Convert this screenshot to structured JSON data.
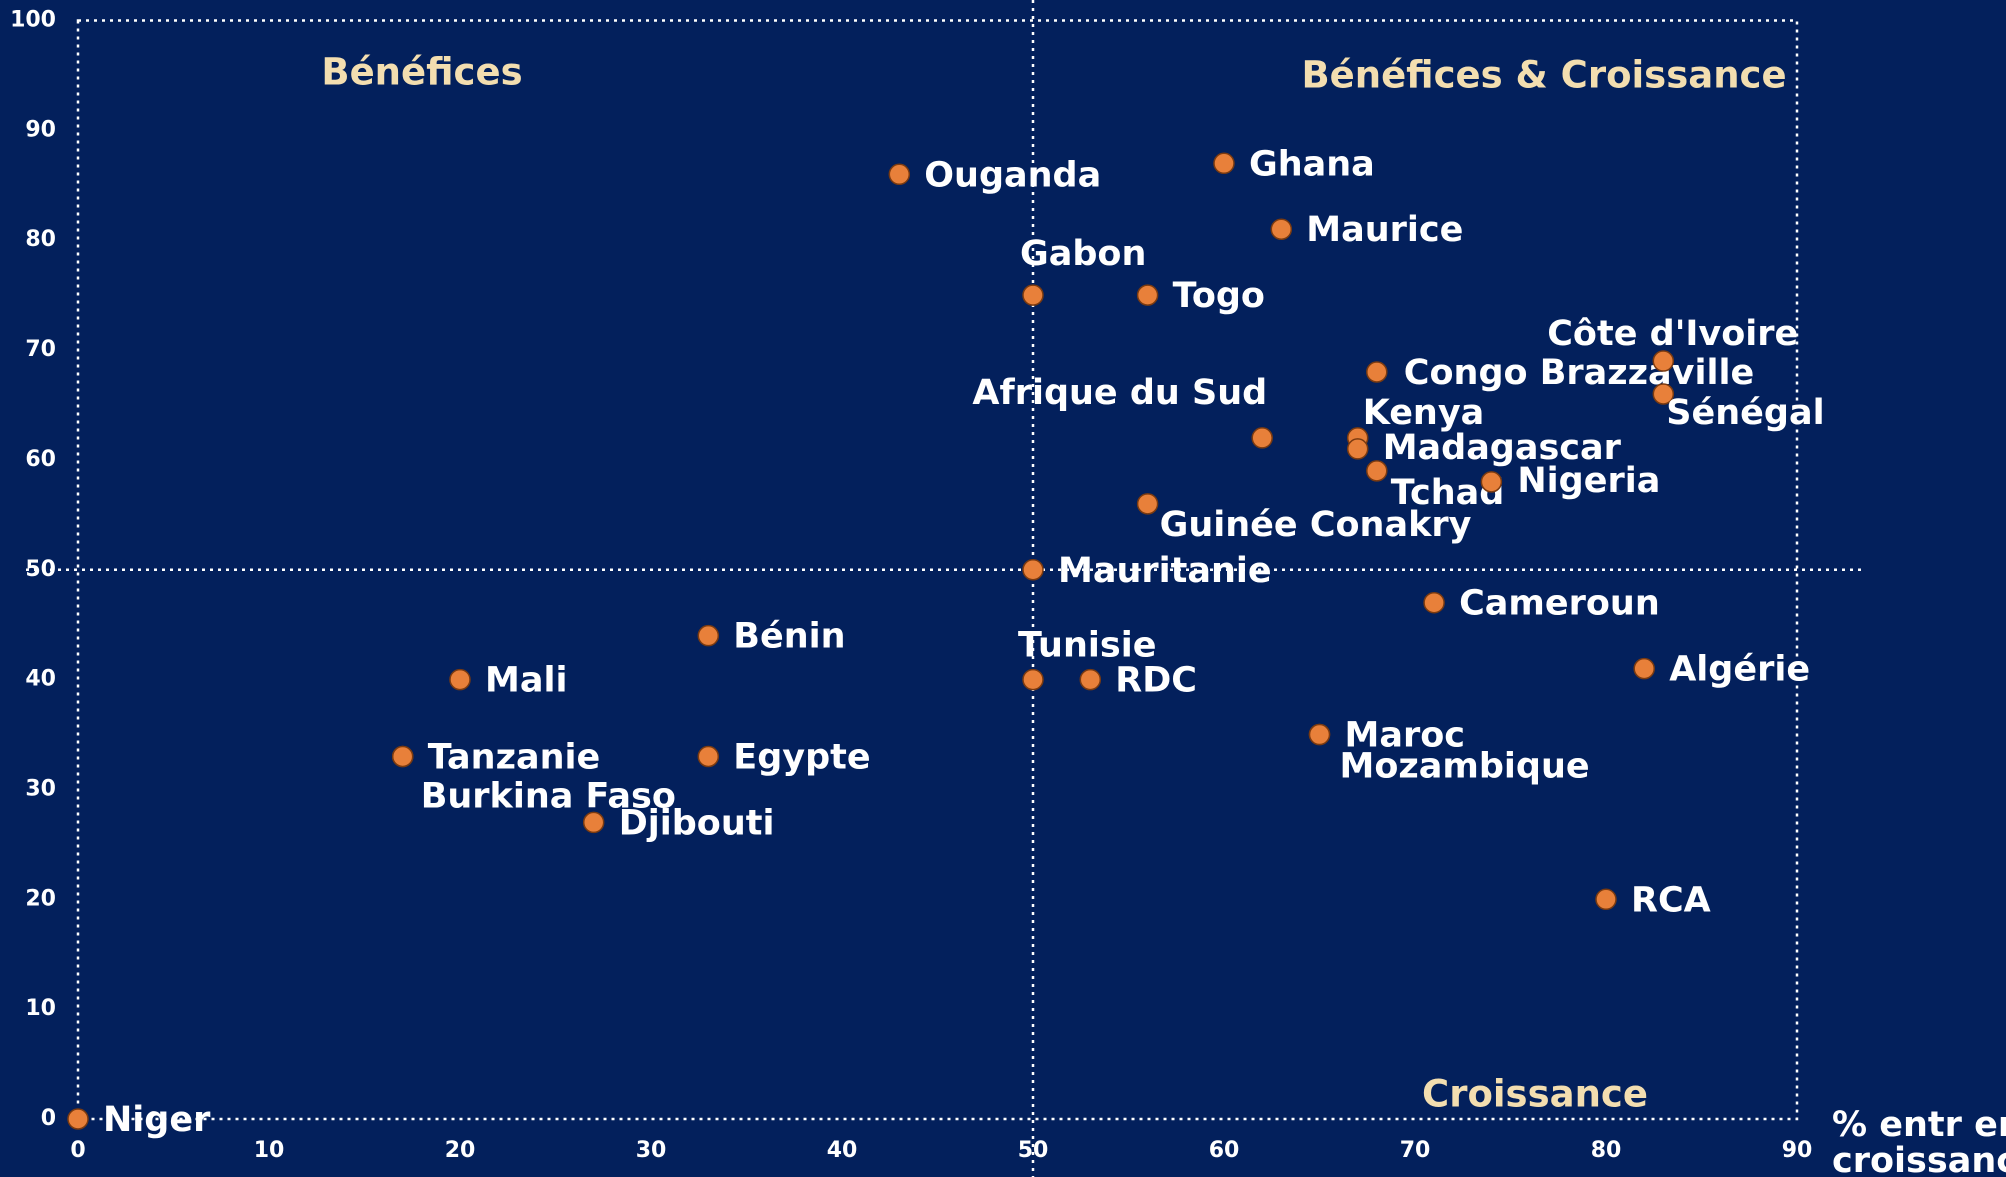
{
  "chart_data": {
    "type": "scatter",
    "x": [
      0,
      20,
      17,
      17,
      33,
      33,
      27,
      43,
      50,
      56,
      60,
      63,
      62,
      68,
      67,
      67,
      68,
      74,
      83,
      83,
      56,
      50,
      71,
      50,
      53,
      82,
      65,
      65,
      80
    ],
    "values": [
      0,
      40,
      33,
      33,
      44,
      33,
      27,
      86,
      75,
      75,
      87,
      81,
      62,
      68,
      62,
      61,
      59,
      58,
      69,
      66,
      56,
      50,
      47,
      40,
      40,
      41,
      35,
      35,
      20
    ],
    "labels": [
      "Niger",
      "Mali",
      "Tanzanie",
      "Burkina Faso",
      "Bénin",
      "Egypte",
      "Djibouti",
      "Ouganda",
      "Gabon",
      "Togo",
      "Ghana",
      "Maurice",
      "Afrique du Sud",
      "Congo Brazzaville",
      "Kenya",
      "Madagascar",
      "Tchad",
      "Nigeria",
      "Côte d'Ivoire",
      "Sénégal",
      "Guinée Conakry",
      "Mauritanie",
      "Cameroun",
      "Tunisie",
      "RDC",
      "Algérie",
      "Maroc",
      "Mozambique",
      "RCA"
    ],
    "color": "#e8803a",
    "x_label": [
      "% entr en",
      "croissance"
    ],
    "quadrant_labels": {
      "top_left": "Bénéfices",
      "top_right": "Bénéfices & Croissance",
      "bottom_right": "Croissance"
    },
    "x_divider": 50,
    "y_divider": 50,
    "xlim": [
      0,
      90
    ],
    "ylim": [
      0,
      100
    ],
    "xticks": [
      0,
      10,
      20,
      30,
      40,
      50,
      60,
      70,
      80,
      90
    ],
    "yticks": [
      0,
      10,
      20,
      30,
      40,
      50,
      60,
      70,
      80,
      90,
      100
    ],
    "grid": false
  }
}
